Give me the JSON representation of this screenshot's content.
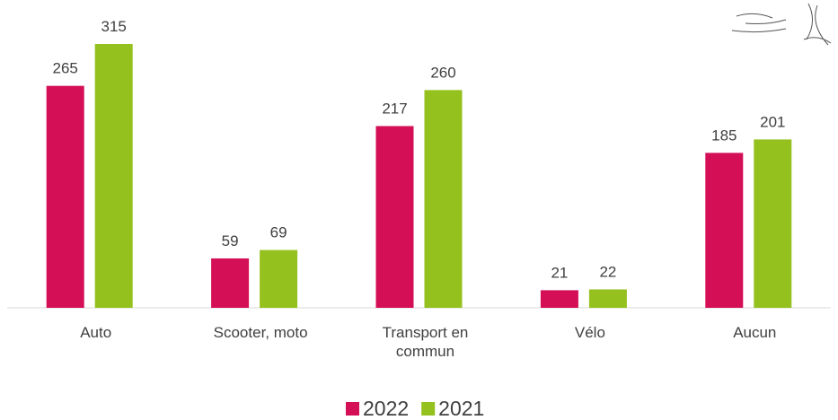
{
  "chart_data": {
    "type": "bar",
    "categories": [
      "Auto",
      "Scooter, moto",
      "Transport en commun",
      "Vélo",
      "Aucun"
    ],
    "series": [
      {
        "name": "2022",
        "color": "#d40f55",
        "values": [
          265,
          59,
          217,
          21,
          185
        ]
      },
      {
        "name": "2021",
        "color": "#95c11f",
        "values": [
          315,
          69,
          260,
          22,
          201
        ]
      }
    ]
  }
}
